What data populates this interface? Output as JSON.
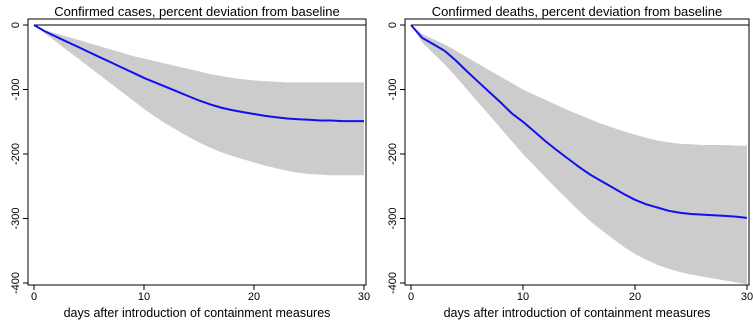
{
  "chart_data": [
    {
      "type": "line",
      "title": "Confirmed cases, percent deviation from baseline",
      "xlabel": "days after introduction of containment measures",
      "ylabel": "",
      "xlim": [
        0,
        30
      ],
      "ylim": [
        -400,
        0
      ],
      "xticks": [
        0,
        10,
        20,
        30
      ],
      "yticks": [
        0,
        -100,
        -200,
        -300,
        -400
      ],
      "grid": false,
      "reference_line": 0,
      "colors": {
        "line": "#1010ee",
        "band": "#cccccc",
        "reference": "#000000"
      },
      "x": [
        0,
        1,
        2,
        3,
        4,
        5,
        6,
        7,
        8,
        9,
        10,
        11,
        12,
        13,
        14,
        15,
        16,
        17,
        18,
        19,
        20,
        21,
        22,
        23,
        24,
        25,
        26,
        27,
        28,
        29,
        30
      ],
      "series": [
        {
          "role": "estimate",
          "values": [
            0,
            -10,
            -18,
            -26,
            -34,
            -42,
            -50,
            -58,
            -66,
            -74,
            -82,
            -89,
            -96,
            -103,
            -110,
            -117,
            -123,
            -128,
            -132,
            -135,
            -138,
            -141,
            -143,
            -145,
            -146,
            -147,
            -148,
            -148,
            -149,
            -149,
            -149
          ]
        },
        {
          "role": "upper",
          "values": [
            0,
            -8,
            -13,
            -18,
            -23,
            -28,
            -33,
            -38,
            -43,
            -48,
            -52,
            -56,
            -60,
            -64,
            -68,
            -72,
            -76,
            -79,
            -82,
            -84,
            -86,
            -87,
            -88,
            -89,
            -89,
            -89,
            -89,
            -89,
            -89,
            -89,
            -89
          ]
        },
        {
          "role": "lower",
          "values": [
            0,
            -13,
            -26,
            -39,
            -52,
            -65,
            -78,
            -91,
            -104,
            -117,
            -130,
            -142,
            -153,
            -163,
            -173,
            -182,
            -190,
            -197,
            -203,
            -208,
            -213,
            -218,
            -222,
            -226,
            -229,
            -231,
            -232,
            -233,
            -233,
            -233,
            -233
          ]
        }
      ]
    },
    {
      "type": "line",
      "title": "Confirmed deaths, percent deviation from baseline",
      "xlabel": "days after introduction of containment measures",
      "ylabel": "",
      "xlim": [
        0,
        30
      ],
      "ylim": [
        -400,
        0
      ],
      "xticks": [
        0,
        10,
        20,
        30
      ],
      "yticks": [
        0,
        -100,
        -200,
        -300,
        -400
      ],
      "grid": false,
      "reference_line": 0,
      "colors": {
        "line": "#1010ee",
        "band": "#cccccc",
        "reference": "#000000"
      },
      "x": [
        0,
        1,
        2,
        3,
        4,
        5,
        6,
        7,
        8,
        9,
        10,
        11,
        12,
        13,
        14,
        15,
        16,
        17,
        18,
        19,
        20,
        21,
        22,
        23,
        24,
        25,
        26,
        27,
        28,
        29,
        30
      ],
      "series": [
        {
          "role": "estimate",
          "values": [
            0,
            -20,
            -30,
            -40,
            -55,
            -72,
            -88,
            -104,
            -120,
            -137,
            -150,
            -165,
            -180,
            -194,
            -207,
            -220,
            -232,
            -242,
            -252,
            -262,
            -271,
            -278,
            -283,
            -288,
            -291,
            -293,
            -294,
            -295,
            -296,
            -297,
            -299
          ]
        },
        {
          "role": "upper",
          "values": [
            0,
            -14,
            -22,
            -30,
            -40,
            -50,
            -60,
            -70,
            -80,
            -90,
            -100,
            -108,
            -116,
            -124,
            -132,
            -139,
            -146,
            -153,
            -159,
            -165,
            -170,
            -175,
            -179,
            -182,
            -184,
            -185,
            -186,
            -186,
            -186,
            -187,
            -187
          ]
        },
        {
          "role": "lower",
          "values": [
            0,
            -27,
            -44,
            -61,
            -80,
            -100,
            -120,
            -140,
            -160,
            -180,
            -200,
            -218,
            -236,
            -254,
            -271,
            -288,
            -304,
            -318,
            -331,
            -344,
            -355,
            -364,
            -372,
            -378,
            -383,
            -387,
            -390,
            -393,
            -396,
            -399,
            -402
          ]
        }
      ]
    }
  ]
}
